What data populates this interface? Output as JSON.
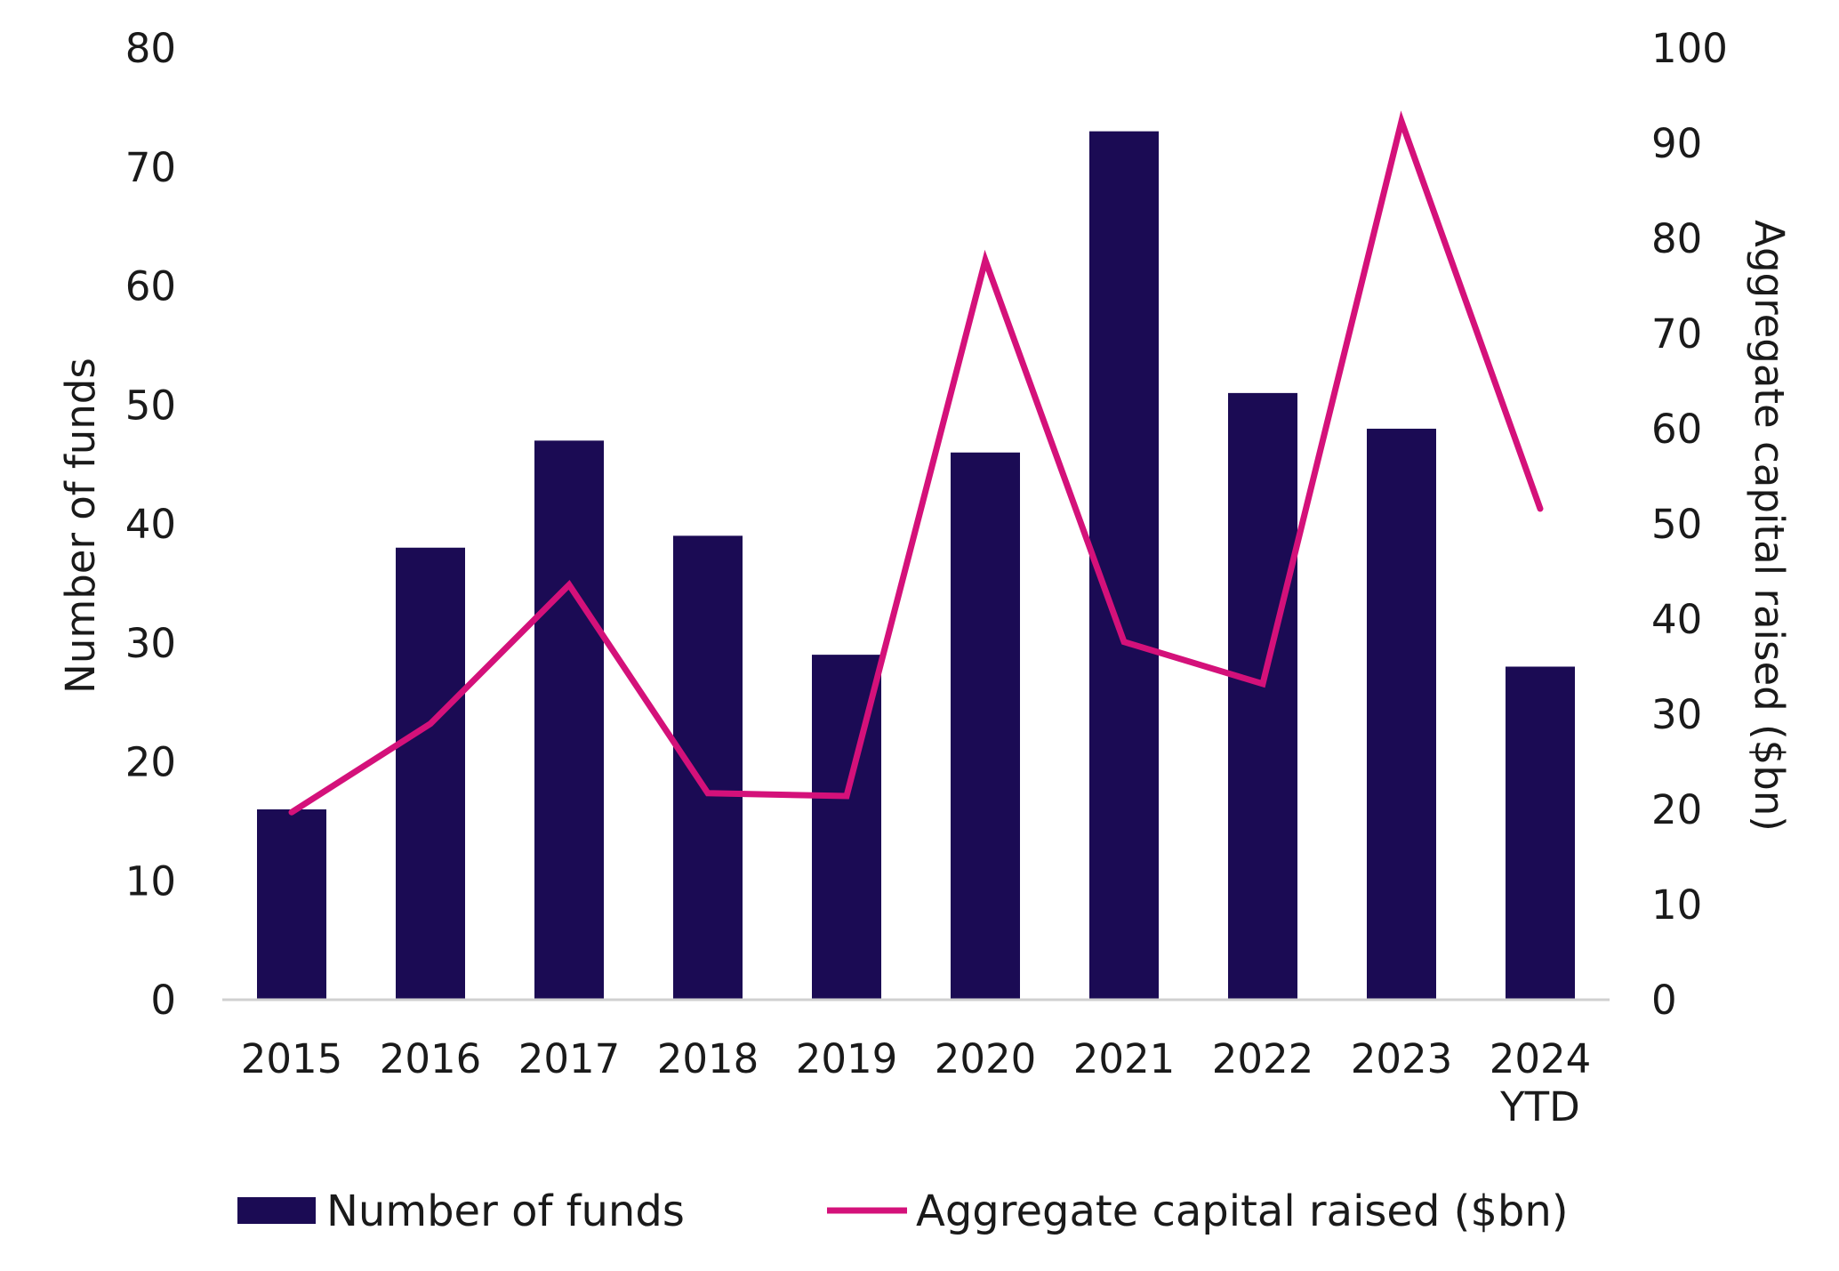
{
  "chart_data": {
    "type": "bar+line",
    "categories": [
      "2015",
      "2016",
      "2017",
      "2018",
      "2019",
      "2020",
      "2021",
      "2022",
      "2023",
      "2024 YTD"
    ],
    "category_lines": [
      [
        "2015"
      ],
      [
        "2016"
      ],
      [
        "2017"
      ],
      [
        "2018"
      ],
      [
        "2019"
      ],
      [
        "2020"
      ],
      [
        "2021"
      ],
      [
        "2022"
      ],
      [
        "2023"
      ],
      [
        "2024",
        "YTD"
      ]
    ],
    "series": [
      {
        "name": "Number of funds",
        "type": "bar",
        "axis": "left",
        "color": "#1b0b54",
        "values": [
          16,
          38,
          47,
          39,
          29,
          46,
          73,
          51,
          48,
          28
        ]
      },
      {
        "name": "Aggregate capital raised ($bn)",
        "type": "line",
        "axis": "right",
        "color": "#d4117a",
        "values": [
          19.7,
          29,
          43.6,
          21.7,
          21.4,
          77.7,
          37.6,
          33.2,
          92.3,
          51.6
        ]
      }
    ],
    "y_left": {
      "label": "Number of funds",
      "ylim": [
        0,
        80
      ],
      "ticks": [
        "0",
        "10",
        "20",
        "30",
        "40",
        "50",
        "60",
        "70",
        "80"
      ]
    },
    "y_right": {
      "label": "Aggregate capital raised ($bn)",
      "ylim": [
        0,
        100
      ],
      "ticks": [
        "0",
        "10",
        "20",
        "30",
        "40",
        "50",
        "60",
        "70",
        "80",
        "90",
        "100"
      ]
    },
    "xlabel": "",
    "grid": false,
    "legend_position": "bottom"
  }
}
